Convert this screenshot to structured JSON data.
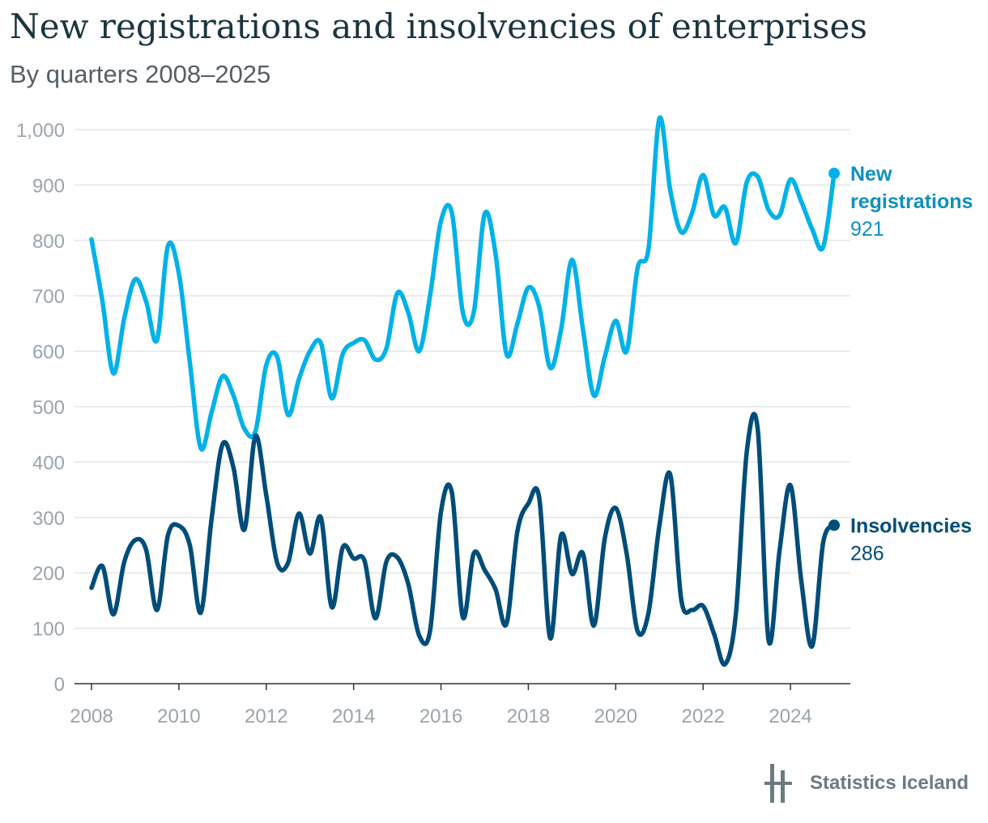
{
  "title": "New registrations and insolvencies of enterprises",
  "subtitle": "By quarters 2008–2025",
  "brand": "Statistics Iceland",
  "colors": {
    "new_registrations": "#00b2e8",
    "insolvencies": "#004d7a",
    "grid": "#e3e6e8",
    "axis": "#333333",
    "tick_text": "#9aa4ab"
  },
  "chart_data": {
    "type": "line",
    "title": "New registrations and insolvencies of enterprises",
    "subtitle": "By quarters 2008–2025",
    "x_start": 2008,
    "x_step": 0.25,
    "xlim": [
      2008,
      2025
    ],
    "ylim": [
      0,
      1000
    ],
    "yticks": [
      0,
      100,
      200,
      300,
      400,
      500,
      600,
      700,
      800,
      900,
      1000
    ],
    "ytick_labels": [
      "0",
      "100",
      "200",
      "300",
      "400",
      "500",
      "600",
      "700",
      "800",
      "900",
      "1,000"
    ],
    "xticks": [
      2008,
      2010,
      2012,
      2014,
      2016,
      2018,
      2020,
      2022,
      2024
    ],
    "xtick_labels": [
      "2008",
      "2010",
      "2012",
      "2014",
      "2016",
      "2018",
      "2020",
      "2022",
      "2024"
    ],
    "grid": true,
    "legend": "direct labels at line ends",
    "series": [
      {
        "name": "New registrations",
        "label_lines": [
          "New",
          "registrations"
        ],
        "last_value_label": "921",
        "values": [
          802,
          690,
          560,
          660,
          730,
          690,
          620,
          790,
          740,
          580,
          425,
          490,
          555,
          520,
          460,
          455,
          575,
          590,
          485,
          550,
          600,
          615,
          515,
          595,
          615,
          620,
          585,
          605,
          705,
          670,
          600,
          700,
          835,
          850,
          670,
          670,
          848,
          775,
          595,
          650,
          715,
          680,
          570,
          640,
          765,
          640,
          520,
          590,
          655,
          600,
          750,
          785,
          1020,
          890,
          815,
          850,
          918,
          845,
          860,
          795,
          905,
          915,
          855,
          845,
          910,
          870,
          820,
          788,
          921
        ]
      },
      {
        "name": "Insolvencies",
        "label_lines": [
          "Insolvencies"
        ],
        "last_value_label": "286",
        "values": [
          173,
          212,
          125,
          220,
          259,
          242,
          133,
          268,
          285,
          250,
          128,
          298,
          432,
          390,
          278,
          447,
          340,
          218,
          218,
          307,
          235,
          300,
          138,
          246,
          226,
          222,
          118,
          220,
          228,
          180,
          87,
          95,
          310,
          345,
          120,
          235,
          205,
          170,
          108,
          275,
          325,
          335,
          82,
          268,
          198,
          235,
          105,
          262,
          317,
          235,
          95,
          128,
          285,
          377,
          152,
          133,
          140,
          90,
          35,
          125,
          418,
          460,
          78,
          240,
          358,
          185,
          68,
          255,
          286
        ]
      }
    ]
  }
}
